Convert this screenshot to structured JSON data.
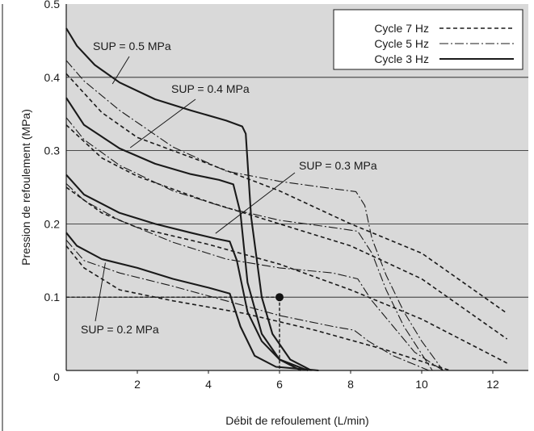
{
  "chart_data": {
    "type": "line",
    "title": "",
    "xlabel": "Débit de refoulement (L/min)",
    "ylabel": "Pression de refoulement (MPa)",
    "xlim": [
      0,
      13
    ],
    "ylim": [
      0,
      0.5
    ],
    "x_ticks": [
      2,
      4,
      6,
      8,
      10,
      12
    ],
    "y_ticks": [
      0.1,
      0.2,
      0.3,
      0.4,
      0.5
    ],
    "origin_label": "0",
    "grid": "horizontal",
    "background_color": "#d9d9d9",
    "legend": {
      "placement": "top-right",
      "entries": [
        {
          "label": "Cycle 7 Hz",
          "style": "dashed"
        },
        {
          "label": "Cycle 5 Hz",
          "style": "dashdot"
        },
        {
          "label": "Cycle 3 Hz",
          "style": "solid"
        }
      ]
    },
    "annotations": [
      {
        "text": "SUP = 0.5 MPa",
        "points_to": [
          1.3,
          0.391
        ]
      },
      {
        "text": "SUP = 0.4 MPa",
        "points_to": [
          1.8,
          0.304
        ]
      },
      {
        "text": "SUP = 0.3 MPa",
        "points_to": [
          4.2,
          0.187
        ]
      },
      {
        "text": "SUP = 0.2 MPa",
        "points_to": [
          1.1,
          0.147
        ]
      }
    ],
    "operating_point": {
      "x": 6.0,
      "y": 0.1
    },
    "series": [
      {
        "sup": 0.5,
        "style": "solid",
        "points": [
          [
            0,
            0.467
          ],
          [
            0.3,
            0.443
          ],
          [
            0.8,
            0.417
          ],
          [
            1.5,
            0.393
          ],
          [
            2.5,
            0.37
          ],
          [
            3.5,
            0.355
          ],
          [
            4.5,
            0.341
          ],
          [
            4.95,
            0.333
          ],
          [
            5.05,
            0.323
          ],
          [
            5.2,
            0.21
          ],
          [
            5.5,
            0.1
          ],
          [
            5.8,
            0.05
          ],
          [
            6.3,
            0.015
          ],
          [
            6.9,
            0
          ]
        ]
      },
      {
        "sup": 0.5,
        "style": "dashdot",
        "points": [
          [
            0,
            0.423
          ],
          [
            0.5,
            0.395
          ],
          [
            1.5,
            0.355
          ],
          [
            3,
            0.305
          ],
          [
            4.5,
            0.272
          ],
          [
            6,
            0.258
          ],
          [
            7.5,
            0.248
          ],
          [
            8.15,
            0.244
          ],
          [
            8.4,
            0.225
          ],
          [
            8.6,
            0.18
          ],
          [
            9,
            0.13
          ],
          [
            9.5,
            0.08
          ],
          [
            10,
            0.04
          ],
          [
            10.6,
            0
          ]
        ]
      },
      {
        "sup": 0.5,
        "style": "dashed",
        "points": [
          [
            0,
            0.405
          ],
          [
            1,
            0.352
          ],
          [
            2,
            0.318
          ],
          [
            4,
            0.282
          ],
          [
            6,
            0.245
          ],
          [
            8,
            0.2
          ],
          [
            10,
            0.16
          ],
          [
            12.4,
            0.078
          ]
        ]
      },
      {
        "sup": 0.4,
        "style": "solid",
        "points": [
          [
            0,
            0.372
          ],
          [
            0.5,
            0.335
          ],
          [
            1.5,
            0.303
          ],
          [
            2.5,
            0.282
          ],
          [
            3.5,
            0.268
          ],
          [
            4.3,
            0.26
          ],
          [
            4.7,
            0.254
          ],
          [
            4.9,
            0.215
          ],
          [
            5.1,
            0.12
          ],
          [
            5.5,
            0.05
          ],
          [
            6,
            0.015
          ],
          [
            6.6,
            0
          ]
        ]
      },
      {
        "sup": 0.4,
        "style": "dashdot",
        "points": [
          [
            0,
            0.345
          ],
          [
            0.5,
            0.315
          ],
          [
            1.5,
            0.28
          ],
          [
            3,
            0.245
          ],
          [
            4.5,
            0.222
          ],
          [
            6,
            0.205
          ],
          [
            7.5,
            0.195
          ],
          [
            8.2,
            0.19
          ],
          [
            8.6,
            0.16
          ],
          [
            9,
            0.11
          ],
          [
            9.5,
            0.06
          ],
          [
            10.1,
            0.015
          ],
          [
            10.3,
            0
          ]
        ]
      },
      {
        "sup": 0.4,
        "style": "dashed",
        "points": [
          [
            0,
            0.335
          ],
          [
            1,
            0.29
          ],
          [
            2,
            0.265
          ],
          [
            4,
            0.23
          ],
          [
            6,
            0.2
          ],
          [
            8,
            0.17
          ],
          [
            10,
            0.125
          ],
          [
            12.4,
            0.043
          ]
        ]
      },
      {
        "sup": 0.3,
        "style": "solid",
        "points": [
          [
            0,
            0.267
          ],
          [
            0.5,
            0.24
          ],
          [
            1.5,
            0.215
          ],
          [
            2.5,
            0.2
          ],
          [
            3.5,
            0.188
          ],
          [
            4.2,
            0.18
          ],
          [
            4.6,
            0.176
          ],
          [
            4.8,
            0.15
          ],
          [
            5.1,
            0.08
          ],
          [
            5.5,
            0.04
          ],
          [
            6,
            0.015
          ],
          [
            6.8,
            0
          ]
        ]
      },
      {
        "sup": 0.3,
        "style": "dashdot",
        "points": [
          [
            0,
            0.255
          ],
          [
            0.5,
            0.232
          ],
          [
            1.5,
            0.205
          ],
          [
            3,
            0.175
          ],
          [
            4.5,
            0.152
          ],
          [
            6,
            0.14
          ],
          [
            7.5,
            0.133
          ],
          [
            8.2,
            0.125
          ],
          [
            8.6,
            0.095
          ],
          [
            9.2,
            0.06
          ],
          [
            9.8,
            0.025
          ],
          [
            10.6,
            0
          ]
        ]
      },
      {
        "sup": 0.3,
        "style": "dashed",
        "points": [
          [
            0,
            0.25
          ],
          [
            1,
            0.215
          ],
          [
            2,
            0.195
          ],
          [
            4,
            0.172
          ],
          [
            6,
            0.145
          ],
          [
            8,
            0.11
          ],
          [
            10,
            0.07
          ],
          [
            12.4,
            0.01
          ]
        ]
      },
      {
        "sup": 0.2,
        "style": "solid",
        "points": [
          [
            0,
            0.188
          ],
          [
            0.3,
            0.17
          ],
          [
            1,
            0.152
          ],
          [
            2,
            0.14
          ],
          [
            3,
            0.125
          ],
          [
            4,
            0.113
          ],
          [
            4.6,
            0.105
          ],
          [
            4.9,
            0.06
          ],
          [
            5.3,
            0.02
          ],
          [
            5.9,
            0.005
          ],
          [
            7.1,
            0
          ]
        ]
      },
      {
        "sup": 0.2,
        "style": "dashdot",
        "points": [
          [
            0,
            0.178
          ],
          [
            0.5,
            0.15
          ],
          [
            1.5,
            0.133
          ],
          [
            3,
            0.115
          ],
          [
            4.5,
            0.095
          ],
          [
            6,
            0.075
          ],
          [
            7.5,
            0.06
          ],
          [
            8.1,
            0.055
          ],
          [
            8.5,
            0.04
          ],
          [
            9.2,
            0.02
          ],
          [
            10.2,
            0
          ]
        ]
      },
      {
        "sup": 0.2,
        "style": "dashed",
        "points": [
          [
            0,
            0.17
          ],
          [
            0.5,
            0.14
          ],
          [
            1.5,
            0.11
          ],
          [
            3,
            0.095
          ],
          [
            5,
            0.078
          ],
          [
            7,
            0.055
          ],
          [
            9,
            0.028
          ],
          [
            10.8,
            0
          ]
        ]
      }
    ]
  }
}
